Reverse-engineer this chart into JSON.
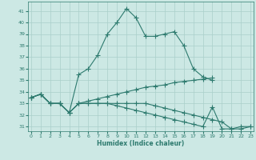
{
  "xlabel": "Humidex (Indice chaleur)",
  "bg_color": "#cce8e4",
  "line_color": "#2d7a6e",
  "grid_color": "#aacfca",
  "x_ticks": [
    0,
    1,
    2,
    3,
    4,
    5,
    6,
    7,
    8,
    9,
    10,
    11,
    12,
    13,
    14,
    15,
    16,
    17,
    18,
    19,
    20,
    21,
    22,
    23
  ],
  "y_ticks": [
    31,
    32,
    33,
    34,
    35,
    36,
    37,
    38,
    39,
    40,
    41
  ],
  "xlim": [
    -0.3,
    23.3
  ],
  "ylim": [
    30.6,
    41.8
  ],
  "lines": [
    {
      "x": [
        0,
        1,
        2,
        3,
        4,
        5,
        6,
        7,
        8,
        9,
        10,
        11,
        12,
        13,
        14,
        15,
        16,
        17,
        18,
        19
      ],
      "y": [
        33.5,
        33.8,
        33.0,
        33.0,
        32.2,
        35.5,
        36.0,
        37.2,
        39.0,
        40.0,
        41.2,
        40.4,
        38.8,
        38.8,
        39.0,
        39.2,
        38.0,
        36.0,
        35.3,
        35.0
      ]
    },
    {
      "x": [
        0,
        1,
        2,
        3,
        4,
        5,
        6,
        7,
        8,
        9,
        10,
        11,
        12,
        13,
        14,
        15,
        16,
        17,
        18,
        19,
        20,
        21,
        22,
        23
      ],
      "y": [
        33.5,
        33.8,
        33.0,
        33.0,
        32.2,
        33.0,
        33.0,
        33.0,
        33.0,
        33.0,
        33.0,
        33.0,
        33.0,
        32.8,
        32.6,
        32.4,
        32.2,
        32.0,
        31.8,
        31.6,
        31.4,
        30.8,
        30.8,
        31.0
      ]
    },
    {
      "x": [
        0,
        1,
        2,
        3,
        4,
        5,
        6,
        7,
        8,
        9,
        10,
        11,
        12,
        13,
        14,
        15,
        16,
        17,
        18,
        19
      ],
      "y": [
        33.5,
        33.8,
        33.0,
        33.0,
        32.2,
        33.0,
        33.2,
        33.4,
        33.6,
        33.8,
        34.0,
        34.2,
        34.4,
        34.5,
        34.6,
        34.8,
        34.9,
        35.0,
        35.1,
        35.2
      ]
    },
    {
      "x": [
        0,
        1,
        2,
        3,
        4,
        5,
        6,
        7,
        8,
        9,
        10,
        11,
        12,
        13,
        14,
        15,
        16,
        17,
        18,
        19,
        20,
        21,
        22,
        23
      ],
      "y": [
        33.5,
        33.8,
        33.0,
        33.0,
        32.2,
        33.0,
        33.0,
        33.0,
        33.0,
        32.8,
        32.6,
        32.4,
        32.2,
        32.0,
        31.8,
        31.6,
        31.4,
        31.2,
        31.0,
        32.7,
        30.8,
        30.8,
        31.0,
        31.0
      ]
    }
  ]
}
